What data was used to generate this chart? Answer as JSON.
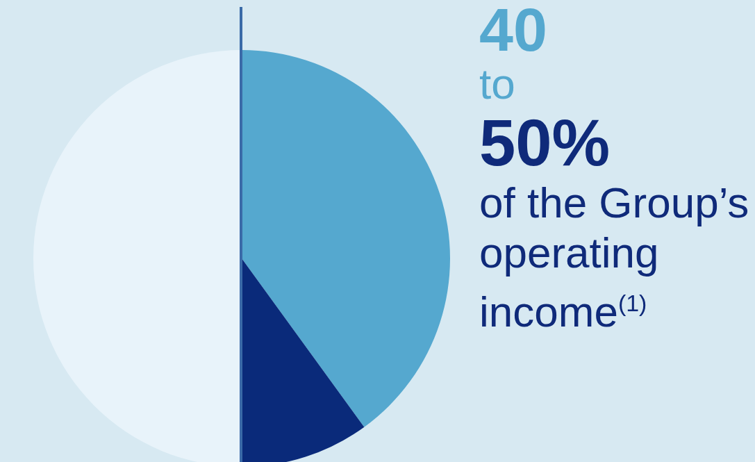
{
  "chart_data": {
    "type": "pie",
    "categories": [
      null,
      null,
      null
    ],
    "values": [
      40,
      10,
      50
    ],
    "colors": [
      "#55a8cf",
      "#0a2a7a",
      "#e8f3fa"
    ],
    "annotations": [
      "40",
      "to",
      "50%",
      "of the Group’s operating income$^{(1)}$"
    ]
  }
}
